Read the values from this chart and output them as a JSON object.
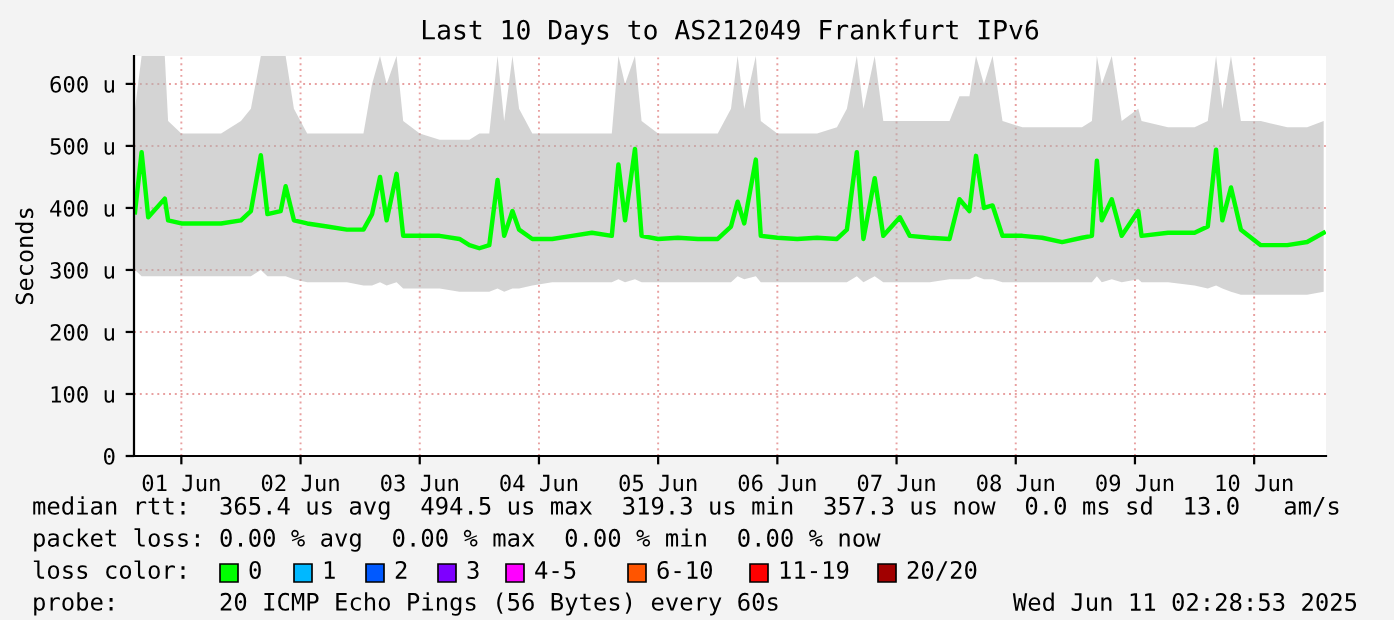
{
  "chart_data": {
    "type": "line",
    "title": "Last 10 Days to AS212049 Frankfurt IPv6",
    "ylabel": "Seconds",
    "xlim": [
      "2025-06-01T02:28",
      "2025-06-11T02:28"
    ],
    "xticks": [
      {
        "value": "2025-06-01T12:00",
        "label": "01 Jun"
      },
      {
        "value": "2025-06-02T12:00",
        "label": "02 Jun"
      },
      {
        "value": "2025-06-03T12:00",
        "label": "03 Jun"
      },
      {
        "value": "2025-06-04T12:00",
        "label": "04 Jun"
      },
      {
        "value": "2025-06-05T12:00",
        "label": "05 Jun"
      },
      {
        "value": "2025-06-06T12:00",
        "label": "06 Jun"
      },
      {
        "value": "2025-06-07T12:00",
        "label": "07 Jun"
      },
      {
        "value": "2025-06-08T12:00",
        "label": "08 Jun"
      },
      {
        "value": "2025-06-09T12:00",
        "label": "09 Jun"
      },
      {
        "value": "2025-06-10T12:00",
        "label": "10 Jun"
      }
    ],
    "ylim": [
      0,
      645
    ],
    "yticks": [
      0,
      {
        "value": 100,
        "label": "100 u"
      },
      {
        "value": 200,
        "label": "200 u"
      },
      {
        "value": 300,
        "label": "300 u"
      },
      {
        "value": 400,
        "label": "400 u"
      },
      {
        "value": 500,
        "label": "500 u"
      },
      {
        "value": 600,
        "label": "600 u"
      }
    ],
    "grid": true,
    "marker": "none",
    "line_style": "solid",
    "legend": false,
    "x": [
      "2025-06-01T02:40",
      "2025-06-01T04:00",
      "2025-06-01T05:20",
      "2025-06-01T08:40",
      "2025-06-01T09:20",
      "2025-06-01T12:00",
      "2025-06-01T16:00",
      "2025-06-01T20:00",
      "2025-06-02T00:00",
      "2025-06-02T02:00",
      "2025-06-02T04:00",
      "2025-06-02T05:20",
      "2025-06-02T08:00",
      "2025-06-02T09:00",
      "2025-06-02T10:40",
      "2025-06-02T13:20",
      "2025-06-02T17:20",
      "2025-06-02T21:20",
      "2025-06-03T00:40",
      "2025-06-03T02:24",
      "2025-06-03T04:00",
      "2025-06-03T05:20",
      "2025-06-03T07:20",
      "2025-06-03T08:40",
      "2025-06-03T12:00",
      "2025-06-03T16:00",
      "2025-06-03T20:00",
      "2025-06-03T22:00",
      "2025-06-04T00:00",
      "2025-06-04T02:00",
      "2025-06-04T03:40",
      "2025-06-04T05:00",
      "2025-06-04T06:40",
      "2025-06-04T08:00",
      "2025-06-04T10:40",
      "2025-06-04T14:40",
      "2025-06-04T18:40",
      "2025-06-04T22:40",
      "2025-06-05T02:40",
      "2025-06-05T04:00",
      "2025-06-05T05:20",
      "2025-06-05T07:20",
      "2025-06-05T08:40",
      "2025-06-05T12:00",
      "2025-06-05T16:00",
      "2025-06-05T20:00",
      "2025-06-06T00:00",
      "2025-06-06T02:40",
      "2025-06-06T04:00",
      "2025-06-06T05:20",
      "2025-06-06T07:40",
      "2025-06-06T08:40",
      "2025-06-06T12:00",
      "2025-06-06T16:00",
      "2025-06-06T20:00",
      "2025-06-07T00:00",
      "2025-06-07T02:00",
      "2025-06-07T04:00",
      "2025-06-07T05:20",
      "2025-06-07T07:36",
      "2025-06-07T09:20",
      "2025-06-07T12:40",
      "2025-06-07T14:40",
      "2025-06-07T18:40",
      "2025-06-07T22:40",
      "2025-06-08T00:40",
      "2025-06-08T02:40",
      "2025-06-08T04:00",
      "2025-06-08T05:36",
      "2025-06-08T07:20",
      "2025-06-08T09:20",
      "2025-06-08T13:20",
      "2025-06-08T17:20",
      "2025-06-08T21:20",
      "2025-06-09T01:20",
      "2025-06-09T03:20",
      "2025-06-09T04:20",
      "2025-06-09T05:20",
      "2025-06-09T07:20",
      "2025-06-09T09:20",
      "2025-06-09T12:40",
      "2025-06-09T13:20",
      "2025-06-09T18:40",
      "2025-06-10T00:00",
      "2025-06-10T02:40",
      "2025-06-10T04:20",
      "2025-06-10T05:36",
      "2025-06-10T07:20",
      "2025-06-10T09:20",
      "2025-06-10T13:20",
      "2025-06-10T18:40",
      "2025-06-10T22:40",
      "2025-06-11T02:00"
    ],
    "series": [
      {
        "color": "#00ff00",
        "values": [
          393,
          490,
          385,
          415,
          380,
          375,
          375,
          375,
          380,
          395,
          485,
          390,
          395,
          435,
          380,
          375,
          370,
          365,
          365,
          390,
          450,
          380,
          455,
          355,
          355,
          355,
          350,
          340,
          335,
          340,
          445,
          355,
          395,
          365,
          350,
          350,
          355,
          360,
          355,
          470,
          380,
          495,
          355,
          350,
          352,
          350,
          350,
          370,
          410,
          375,
          478,
          355,
          352,
          350,
          352,
          350,
          365,
          490,
          350,
          448,
          355,
          385,
          355,
          352,
          350,
          414,
          395,
          484,
          400,
          404,
          355,
          355,
          352,
          345,
          352,
          355,
          476,
          380,
          414,
          355,
          395,
          355,
          360,
          360,
          370,
          494,
          380,
          433,
          365,
          340,
          340,
          345,
          360
        ],
        "upper": [
          560,
          645,
          645,
          645,
          540,
          520,
          520,
          520,
          540,
          560,
          645,
          645,
          645,
          645,
          560,
          520,
          520,
          520,
          520,
          600,
          645,
          600,
          645,
          540,
          520,
          510,
          510,
          510,
          520,
          520,
          645,
          540,
          645,
          560,
          520,
          520,
          520,
          520,
          520,
          645,
          600,
          645,
          540,
          520,
          520,
          520,
          520,
          560,
          645,
          560,
          645,
          540,
          520,
          520,
          520,
          530,
          560,
          645,
          560,
          645,
          540,
          540,
          540,
          540,
          540,
          580,
          580,
          645,
          600,
          645,
          540,
          530,
          530,
          530,
          530,
          540,
          645,
          600,
          645,
          540,
          560,
          540,
          530,
          530,
          540,
          645,
          560,
          645,
          540,
          540,
          530,
          530,
          540
        ],
        "lower": [
          300,
          290,
          290,
          290,
          290,
          290,
          290,
          290,
          290,
          290,
          300,
          290,
          290,
          290,
          285,
          280,
          280,
          280,
          275,
          275,
          280,
          275,
          280,
          270,
          270,
          270,
          265,
          265,
          265,
          265,
          270,
          265,
          270,
          270,
          275,
          280,
          280,
          280,
          280,
          285,
          280,
          285,
          280,
          280,
          280,
          280,
          280,
          280,
          290,
          285,
          290,
          280,
          280,
          280,
          280,
          280,
          280,
          290,
          280,
          290,
          280,
          280,
          280,
          280,
          285,
          285,
          285,
          290,
          285,
          285,
          280,
          280,
          280,
          280,
          280,
          280,
          290,
          280,
          285,
          280,
          285,
          280,
          280,
          275,
          270,
          275,
          270,
          265,
          260,
          260,
          260,
          260,
          265
        ]
      }
    ],
    "annotations": [
      "median rtt:  365.4 us avg  494.5 us max  319.3 us min  357.3 us now  0.0 ms sd  13.0   am/s",
      "packet loss: 0.00 % avg  0.00 % max  0.00 % min  0.00 % now",
      "loss color:",
      "0",
      "1",
      "2",
      "3",
      "4-5",
      "6-10",
      "11-19",
      "20/20",
      "probe:       20 ICMP Echo Pings (56 Bytes) every 60s",
      "Wed Jun 11 02:28:53 2025"
    ]
  }
}
